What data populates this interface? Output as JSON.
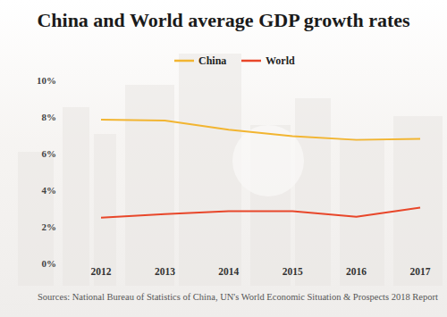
{
  "chart_data": {
    "type": "line",
    "title": "China and World average GDP growth rates",
    "categories": [
      "2012",
      "2013",
      "2014",
      "2015",
      "2016",
      "2017"
    ],
    "series": [
      {
        "name": "China",
        "color": "#f2b531",
        "values": [
          7.85,
          7.8,
          7.3,
          6.95,
          6.75,
          6.8
        ]
      },
      {
        "name": "World",
        "color": "#e8472a",
        "values": [
          2.5,
          2.7,
          2.85,
          2.85,
          2.55,
          3.05
        ]
      }
    ],
    "ylim": [
      0,
      10
    ],
    "yticks": [
      {
        "value": 0,
        "label": "0%"
      },
      {
        "value": 2,
        "label": "2%"
      },
      {
        "value": 4,
        "label": "4%"
      },
      {
        "value": 6,
        "label": "6%"
      },
      {
        "value": 8,
        "label": "8%"
      },
      {
        "value": 10,
        "label": "10%"
      }
    ],
    "grid": false,
    "legend": "top",
    "source": "Sources: National Bureau of Statistics of China, UN's World Economic Situation & Prospects 2018 Report"
  }
}
